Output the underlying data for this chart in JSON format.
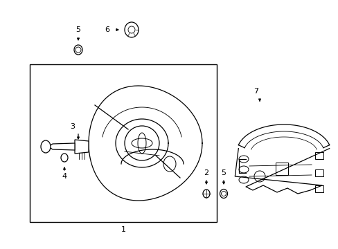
{
  "bg_color": "#ffffff",
  "line_color": "#000000",
  "fig_width": 4.89,
  "fig_height": 3.6,
  "dpi": 100,
  "lw": 0.9
}
